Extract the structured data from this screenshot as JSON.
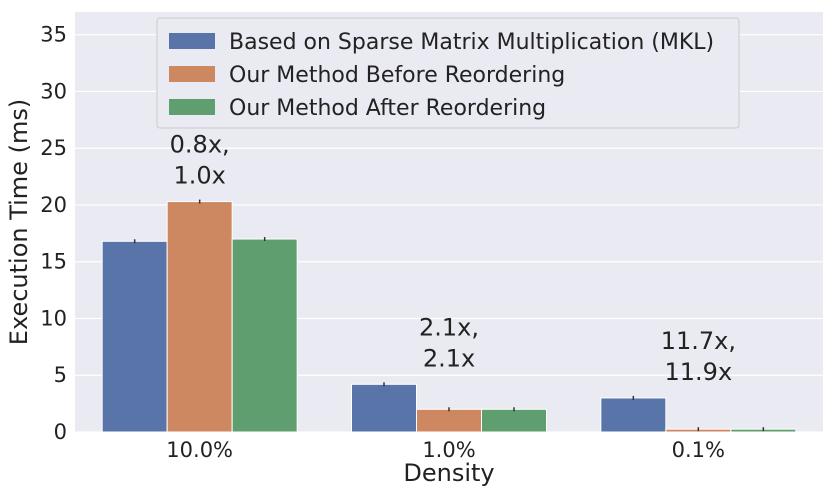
{
  "chart_data": {
    "type": "bar",
    "xlabel": "Density",
    "ylabel": "Execution Time (ms)",
    "ylim": [
      0,
      37
    ],
    "yticks": [
      0,
      5,
      10,
      15,
      20,
      25,
      30,
      35
    ],
    "grid": true,
    "legend_position": "top-center",
    "categories": [
      "10.0%",
      "1.0%",
      "0.1%"
    ],
    "series": [
      {
        "name": "Based on Sparse Matrix Multiplication (MKL)",
        "color": "#5874a8",
        "values": [
          16.8,
          4.2,
          3.0
        ]
      },
      {
        "name": "Our Method Before Reordering",
        "color": "#cd8862",
        "values": [
          20.3,
          2.0,
          0.25
        ]
      },
      {
        "name": "Our Method After Reordering",
        "color": "#5f9e6e",
        "values": [
          17.0,
          2.0,
          0.25
        ]
      }
    ],
    "annotations": [
      {
        "lines": [
          "0.8x,",
          "1.0x"
        ]
      },
      {
        "lines": [
          "2.1x,",
          "2.1x"
        ]
      },
      {
        "lines": [
          "11.7x,",
          "11.9x"
        ]
      }
    ],
    "colors": {
      "plot_background": "#eaeaf2",
      "grid": "#ffffff",
      "text": "#222222"
    }
  }
}
